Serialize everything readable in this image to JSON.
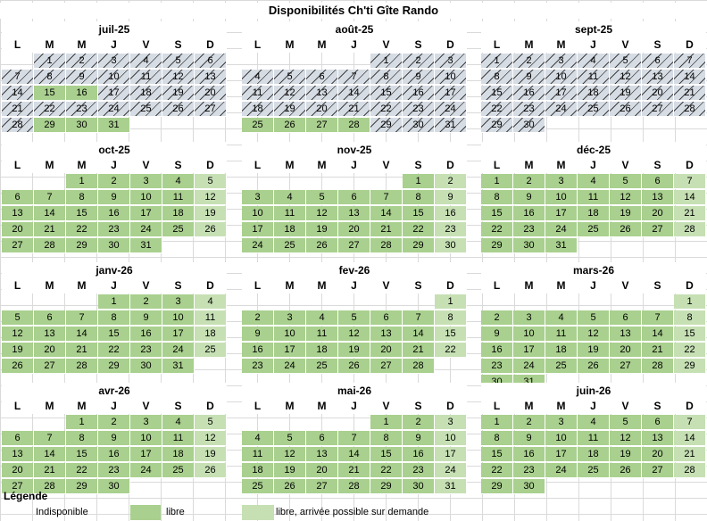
{
  "title": "Disponibilités Ch'ti Gîte Rando",
  "weekdays": [
    "L",
    "M",
    "M",
    "J",
    "V",
    "S",
    "D"
  ],
  "colors": {
    "indisponible": "#d6dce4",
    "libre": "#a9d08e",
    "arrivee": "#c6e0b4"
  },
  "months": [
    {
      "name": "juil-25",
      "start": 1,
      "days": 31,
      "status": {
        "indisponible": [
          1,
          2,
          3,
          4,
          5,
          6,
          7,
          8,
          9,
          10,
          11,
          12,
          13,
          14,
          17,
          18,
          19,
          20,
          21,
          22,
          23,
          24,
          25,
          26,
          27,
          28
        ],
        "libre": [
          15,
          16,
          29,
          30,
          31
        ]
      }
    },
    {
      "name": "août-25",
      "start": 4,
      "days": 31,
      "status": {
        "indisponible": [
          1,
          2,
          3,
          4,
          5,
          6,
          7,
          8,
          9,
          10,
          11,
          12,
          13,
          14,
          15,
          16,
          17,
          18,
          19,
          20,
          21,
          22,
          23,
          24,
          29,
          30,
          31
        ],
        "libre": [
          25,
          26,
          27,
          28
        ]
      }
    },
    {
      "name": "sept-25",
      "start": 0,
      "days": 30,
      "status": {
        "indisponible": [
          1,
          2,
          3,
          4,
          5,
          6,
          7,
          8,
          9,
          10,
          11,
          12,
          13,
          14,
          15,
          16,
          17,
          18,
          19,
          20,
          21,
          22,
          23,
          24,
          25,
          26,
          27,
          28,
          29,
          30
        ],
        "libre": []
      }
    },
    {
      "name": "oct-25",
      "start": 2,
      "days": 31,
      "status": {
        "libre": "all",
        "arrivee": [
          5,
          12,
          19,
          26
        ]
      }
    },
    {
      "name": "nov-25",
      "start": 5,
      "days": 30,
      "status": {
        "libre": "all",
        "arrivee": [
          2,
          9,
          16,
          23,
          30
        ]
      }
    },
    {
      "name": "déc-25",
      "start": 0,
      "days": 31,
      "status": {
        "libre": "all",
        "arrivee": [
          7,
          14,
          21,
          28
        ]
      }
    },
    {
      "name": "janv-26",
      "start": 3,
      "days": 31,
      "status": {
        "libre": "all",
        "arrivee": [
          4,
          11,
          18,
          25
        ]
      }
    },
    {
      "name": "fev-26",
      "start": 6,
      "days": 28,
      "status": {
        "libre": "all",
        "arrivee": [
          1,
          8,
          15,
          22
        ]
      }
    },
    {
      "name": "mars-26",
      "start": 6,
      "days": 31,
      "status": {
        "libre": "all",
        "arrivee": [
          1,
          8,
          15,
          22,
          29
        ]
      }
    },
    {
      "name": "avr-26",
      "start": 2,
      "days": 30,
      "status": {
        "libre": "all",
        "arrivee": [
          5,
          12,
          19,
          26
        ]
      }
    },
    {
      "name": "mai-26",
      "start": 4,
      "days": 31,
      "status": {
        "libre": "all",
        "arrivee": [
          3,
          10,
          17,
          24,
          31
        ]
      }
    },
    {
      "name": "juin-26",
      "start": 0,
      "days": 30,
      "status": {
        "libre": "all",
        "arrivee": [
          7,
          14,
          21,
          28
        ]
      }
    }
  ],
  "legend": {
    "title": "Légende",
    "items": [
      {
        "key": "indisponible",
        "label": "Indisponible"
      },
      {
        "key": "libre",
        "label": "libre"
      },
      {
        "key": "arrivee",
        "label": "libre, arrivée possible sur demande"
      }
    ]
  }
}
